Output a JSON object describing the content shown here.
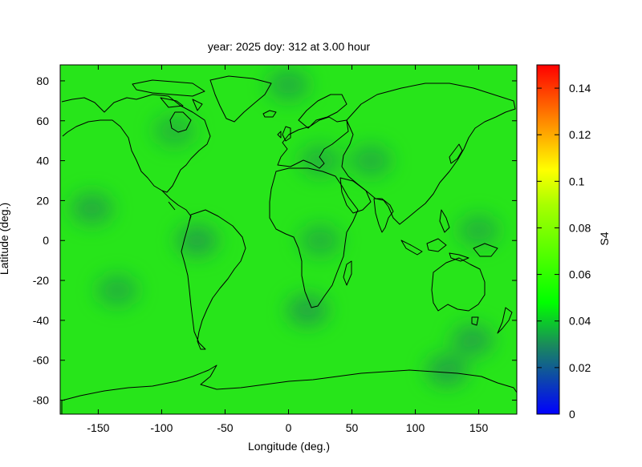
{
  "title": "year: 2025 doy: 312 at 3.00 hour",
  "xlabel": "Longitude (deg.)",
  "ylabel": "Latitude (deg.)",
  "colorbar_label": "S4",
  "x_ticks": [
    "-150",
    "-100",
    "-50",
    "0",
    "50",
    "100",
    "150"
  ],
  "y_ticks": [
    "-80",
    "-60",
    "-40",
    "-20",
    "0",
    "20",
    "40",
    "60",
    "80"
  ],
  "cb_ticks": [
    "0",
    "0.02",
    "0.04",
    "0.06",
    "0.08",
    "0.1",
    "0.12",
    "0.14"
  ],
  "colors": {
    "background_field": "#27e51a",
    "coastline": "#000000",
    "colormap": [
      "#0000ff",
      "#1a8c5a",
      "#00ff00",
      "#ffff00",
      "#ff0000"
    ]
  },
  "chart_data": {
    "type": "heatmap",
    "variable": "S4",
    "xlim": [
      -180,
      180
    ],
    "ylim": [
      -87,
      88
    ],
    "x_ticks": [
      -150,
      -100,
      -50,
      0,
      50,
      100,
      150
    ],
    "y_ticks": [
      -80,
      -60,
      -40,
      -20,
      0,
      20,
      40,
      60,
      80
    ],
    "color_range": [
      0,
      0.15
    ],
    "colorbar_ticks": [
      0,
      0.02,
      0.04,
      0.06,
      0.08,
      0.1,
      0.12,
      0.14
    ],
    "background_value": 0.045,
    "low_regions": [
      {
        "lon": -155,
        "lat": 16,
        "value": 0.032
      },
      {
        "lon": -135,
        "lat": -25,
        "value": 0.035
      },
      {
        "lon": -72,
        "lat": 0,
        "value": 0.03
      },
      {
        "lon": 0,
        "lat": 78,
        "value": 0.034
      },
      {
        "lon": 15,
        "lat": -35,
        "value": 0.03
      },
      {
        "lon": 25,
        "lat": 0,
        "value": 0.036
      },
      {
        "lon": 25,
        "lat": 40,
        "value": 0.036
      },
      {
        "lon": 65,
        "lat": 40,
        "value": 0.035
      },
      {
        "lon": 145,
        "lat": -50,
        "value": 0.031
      },
      {
        "lon": 125,
        "lat": -65,
        "value": 0.03
      },
      {
        "lon": 150,
        "lat": 5,
        "value": 0.036
      },
      {
        "lon": -90,
        "lat": 55,
        "value": 0.037
      }
    ]
  }
}
